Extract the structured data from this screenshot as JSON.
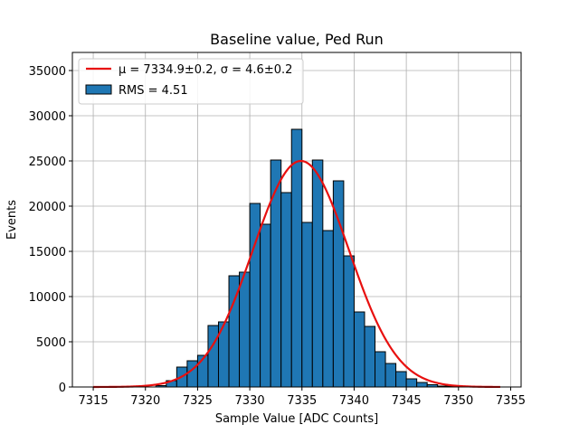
{
  "chart_data": {
    "type": "bar",
    "title": "Baseline value, Ped Run",
    "xlabel": "Sample Value [ADC Counts]",
    "ylabel": "Events",
    "xlim": [
      7313,
      7356
    ],
    "ylim": [
      0,
      37000
    ],
    "xticks": [
      7315,
      7320,
      7325,
      7330,
      7335,
      7340,
      7345,
      7350,
      7355
    ],
    "yticks": [
      0,
      5000,
      10000,
      15000,
      20000,
      25000,
      30000,
      35000
    ],
    "grid": true,
    "legend_position": "top-left",
    "histogram": {
      "name": "RMS = 4.51",
      "color": "#1f77b4",
      "bin_width": 1,
      "bin_left_edges": [
        7321,
        7322,
        7323,
        7324,
        7325,
        7326,
        7327,
        7328,
        7329,
        7330,
        7331,
        7332,
        7333,
        7334,
        7335,
        7336,
        7337,
        7338,
        7339,
        7340,
        7341,
        7342,
        7343,
        7344,
        7345,
        7346,
        7347,
        7348,
        7349
      ],
      "values": [
        150,
        700,
        2200,
        2900,
        3500,
        6800,
        7200,
        12300,
        12700,
        20300,
        18000,
        25100,
        21500,
        28500,
        18200,
        25100,
        17300,
        22800,
        14500,
        8300,
        6700,
        3900,
        2600,
        1700,
        900,
        500,
        250,
        100,
        50
      ]
    },
    "fit": {
      "name": "μ = 7334.9±0.2, σ = 4.6±0.2",
      "color": "#e8100f",
      "function": "gaussian",
      "mu": 7334.9,
      "sigma": 4.6,
      "amplitude": 25000,
      "x_range": [
        7315,
        7354
      ]
    }
  }
}
